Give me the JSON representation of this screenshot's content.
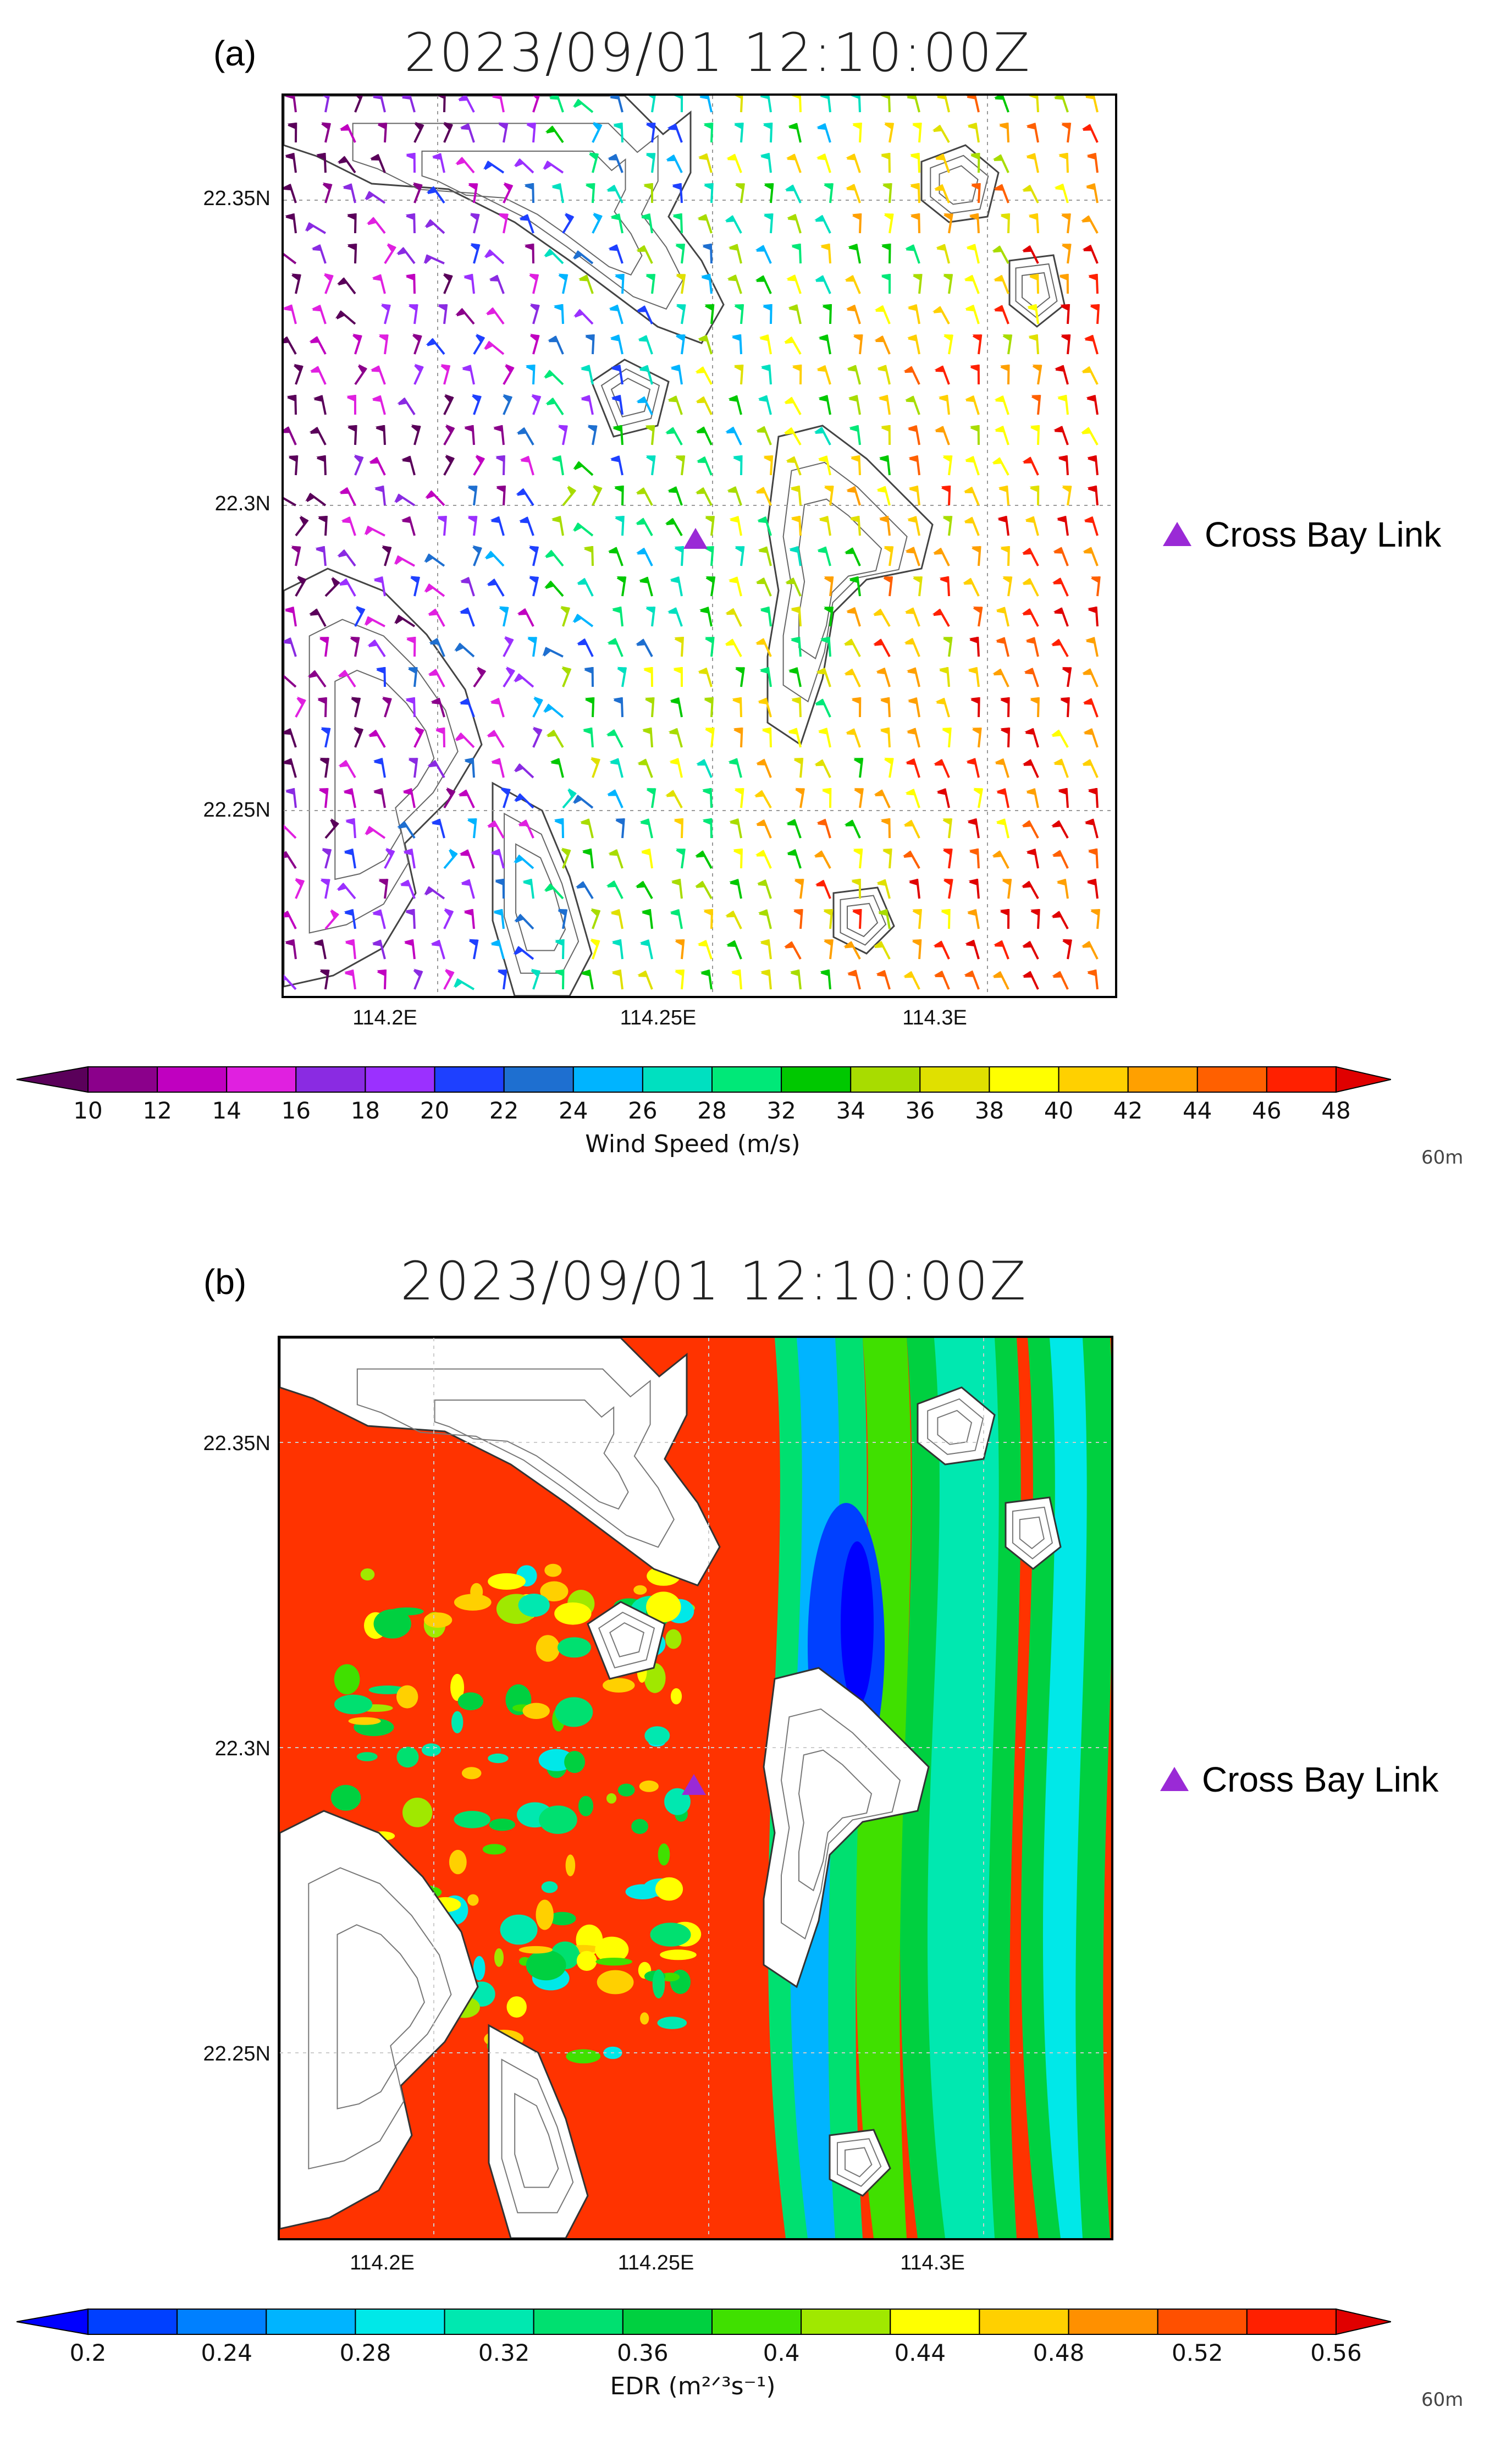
{
  "panels": [
    {
      "label": "(a)",
      "title": "2023/09/01  12:10:00Z",
      "legend_label": "Cross Bay Link",
      "legend_color": "#9a2ad6",
      "level_note": "60m",
      "colorbar_title": "Wind Speed (m/s)",
      "colorbar_ticks": [
        "10",
        "12",
        "14",
        "16",
        "18",
        "20",
        "22",
        "24",
        "26",
        "28",
        "32",
        "34",
        "36",
        "38",
        "40",
        "42",
        "44",
        "46",
        "48"
      ]
    },
    {
      "label": "(b)",
      "title": "2023/09/01  12:10:00Z",
      "legend_label": "Cross Bay Link",
      "legend_color": "#9a2ad6",
      "level_note": "60m",
      "colorbar_title": "EDR (m²ᐟ³s⁻¹)",
      "colorbar_ticks": [
        "0.2",
        "0.24",
        "0.28",
        "0.32",
        "0.36",
        "0.4",
        "0.44",
        "0.48",
        "0.52",
        "0.56"
      ]
    }
  ],
  "chart_data": [
    {
      "type": "heatmap",
      "title": "2023/09/01  12:10:00Z",
      "field": "wind barbs colored by wind speed",
      "xlabel": "",
      "ylabel": "",
      "x_ticks": [
        "114.2E",
        "114.25E",
        "114.3E"
      ],
      "y_ticks": [
        "22.35N",
        "22.3N",
        "22.25N"
      ],
      "xlim": [
        114.175,
        114.335
      ],
      "ylim": [
        22.22,
        22.37
      ],
      "grid": true,
      "colorbar": {
        "label": "Wind Speed (m/s)",
        "levels": [
          10,
          12,
          14,
          16,
          18,
          20,
          22,
          24,
          26,
          28,
          32,
          34,
          36,
          38,
          40,
          42,
          44,
          46,
          48
        ],
        "colors": [
          "#5a005a",
          "#8b008b",
          "#c000c0",
          "#e020e0",
          "#8a2be2",
          "#9b30ff",
          "#1e40ff",
          "#1e6fd0",
          "#00b4ff",
          "#00e0c0",
          "#00e878",
          "#00c800",
          "#a8dc00",
          "#e0e000",
          "#ffff00",
          "#ffd000",
          "#ffa000",
          "#ff6000",
          "#ff2000",
          "#e00000"
        ]
      },
      "marker": {
        "name": "Cross Bay Link",
        "lon": 114.262,
        "lat": 22.294
      }
    },
    {
      "type": "heatmap",
      "title": "2023/09/01  12:10:00Z",
      "field": "EDR",
      "xlabel": "",
      "ylabel": "",
      "x_ticks": [
        "114.2E",
        "114.25E",
        "114.3E"
      ],
      "y_ticks": [
        "22.35N",
        "22.3N",
        "22.25N"
      ],
      "xlim": [
        114.175,
        114.335
      ],
      "ylim": [
        22.22,
        22.37
      ],
      "grid": true,
      "colorbar": {
        "label": "EDR (m²ᐟ³s⁻¹)",
        "levels": [
          0.2,
          0.24,
          0.28,
          0.32,
          0.36,
          0.4,
          0.44,
          0.48,
          0.52,
          0.56
        ],
        "colors": [
          "#0000ff",
          "#0040ff",
          "#0080ff",
          "#00b4ff",
          "#00e8e8",
          "#00e8b0",
          "#00e070",
          "#00d040",
          "#40e000",
          "#a0e800",
          "#ffff00",
          "#ffd000",
          "#ff9000",
          "#ff5000",
          "#ff2000",
          "#e00000"
        ]
      },
      "marker": {
        "name": "Cross Bay Link",
        "lon": 114.262,
        "lat": 22.294
      }
    }
  ]
}
